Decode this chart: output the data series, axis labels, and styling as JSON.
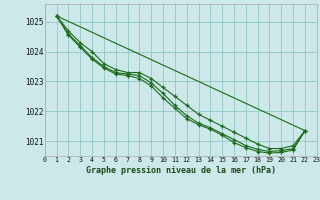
{
  "title": "Graphe pression niveau de la mer (hPa)",
  "bg_color": "#cce8e8",
  "grid_color": "#99cccc",
  "line_color": "#1a6b1a",
  "xlim": [
    0,
    23
  ],
  "ylim": [
    1020.5,
    1025.6
  ],
  "yticks": [
    1021,
    1022,
    1023,
    1024,
    1025
  ],
  "xticks": [
    0,
    1,
    2,
    3,
    4,
    5,
    6,
    7,
    8,
    9,
    10,
    11,
    12,
    13,
    14,
    15,
    16,
    17,
    18,
    19,
    20,
    21,
    22,
    23
  ],
  "series": [
    {
      "x": [
        1,
        2,
        3,
        4,
        5,
        6,
        7,
        8,
        9,
        10,
        11,
        12,
        13,
        14,
        15,
        16,
        17,
        18,
        19,
        20,
        21,
        22
      ],
      "y": [
        1025.2,
        1024.7,
        1024.3,
        1024.0,
        1023.6,
        1023.4,
        1023.3,
        1023.3,
        1023.1,
        1022.8,
        1022.5,
        1022.2,
        1021.9,
        1021.7,
        1021.5,
        1021.3,
        1021.1,
        1020.9,
        1020.75,
        1020.75,
        1020.85,
        1021.35
      ]
    },
    {
      "x": [
        1,
        2,
        3,
        4,
        5,
        6,
        7,
        8,
        9,
        10,
        11,
        12,
        13,
        14,
        15,
        16,
        17,
        18,
        19,
        20,
        21,
        22
      ],
      "y": [
        1025.2,
        1024.6,
        1024.2,
        1023.8,
        1023.5,
        1023.3,
        1023.25,
        1023.2,
        1022.95,
        1022.6,
        1022.2,
        1021.85,
        1021.6,
        1021.45,
        1021.25,
        1021.05,
        1020.85,
        1020.72,
        1020.65,
        1020.68,
        1020.75,
        1021.35
      ]
    },
    {
      "x": [
        1,
        2,
        3,
        4,
        5,
        6,
        7,
        8,
        9,
        10,
        11,
        12,
        13,
        14,
        15,
        16,
        17,
        18,
        19,
        20,
        21,
        22
      ],
      "y": [
        1025.2,
        1024.55,
        1024.15,
        1023.75,
        1023.45,
        1023.25,
        1023.2,
        1023.1,
        1022.85,
        1022.45,
        1022.1,
        1021.75,
        1021.55,
        1021.4,
        1021.2,
        1020.95,
        1020.78,
        1020.65,
        1020.6,
        1020.62,
        1020.7,
        1021.35
      ]
    },
    {
      "x": [
        1,
        22
      ],
      "y": [
        1025.2,
        1021.35
      ]
    }
  ]
}
